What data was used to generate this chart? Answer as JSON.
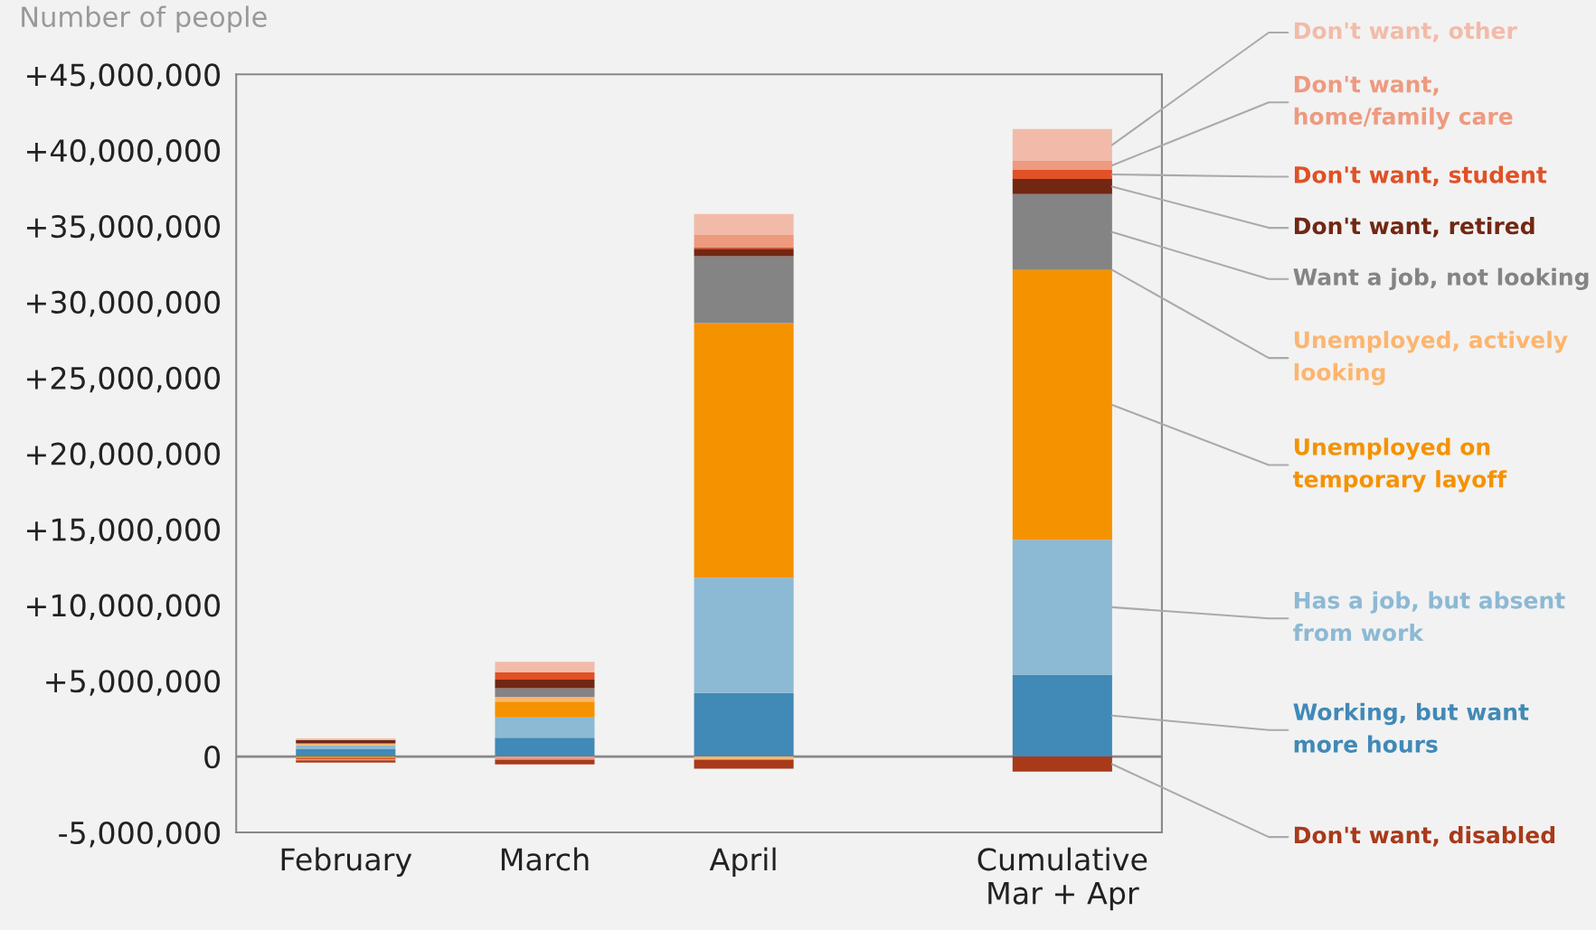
{
  "chart_data": {
    "type": "bar",
    "stacked": true,
    "ylabel": "Number of people",
    "categories": [
      "February",
      "March",
      "April",
      "Cumulative\nMar + Apr"
    ],
    "series": [
      {
        "name": "Working, but want\nmore hours",
        "color": "#4189b6",
        "values": [
          480000,
          1250000,
          4200000,
          5400000
        ]
      },
      {
        "name": "Has a job, but absent\nfrom work",
        "color": "#8cb9d4",
        "values": [
          260000,
          1330000,
          7600000,
          8900000
        ]
      },
      {
        "name": "Unemployed on\ntemporary layoff",
        "color": "#f59200",
        "values": [
          -100000,
          1050000,
          16800000,
          17800000
        ]
      },
      {
        "name": "Unemployed, actively\nlooking",
        "color": "#fdb56e",
        "values": [
          100000,
          300000,
          -200000,
          null
        ]
      },
      {
        "name": "Want a job, not looking",
        "color": "#848484",
        "values": [
          60000,
          580000,
          4400000,
          5000000
        ]
      },
      {
        "name": "Don't want, retired",
        "color": "#722713",
        "values": [
          200000,
          560000,
          500000,
          1000000
        ]
      },
      {
        "name": "Don't want, student",
        "color": "#e05125",
        "values": [
          -100000,
          480000,
          100000,
          600000
        ]
      },
      {
        "name": "Don't want,\nhome/family care",
        "color": "#ee9a7f",
        "values": [
          -50000,
          -200000,
          800000,
          600000
        ]
      },
      {
        "name": "Don't want, other",
        "color": "#f2bba9",
        "values": [
          100000,
          700000,
          1400000,
          2100000
        ]
      },
      {
        "name": "Don't want, disabled",
        "color": "#a83a1a",
        "values": [
          -150000,
          -320000,
          -600000,
          -1000000
        ]
      }
    ],
    "ylim": [
      -5000000,
      45000000
    ],
    "yticks": [
      {
        "value": -5000000,
        "label": "-5,000,000"
      },
      0,
      {
        "value": 5000000,
        "label": "+5,000,000"
      },
      {
        "value": 10000000,
        "label": "+10,000,000"
      },
      {
        "value": 15000000,
        "label": "+15,000,000"
      },
      {
        "value": 20000000,
        "label": "+20,000,000"
      },
      {
        "value": 25000000,
        "label": "+25,000,000"
      },
      {
        "value": 30000000,
        "label": "+30,000,000"
      },
      {
        "value": 35000000,
        "label": "+35,000,000"
      },
      {
        "value": 40000000,
        "label": "+40,000,000"
      },
      {
        "value": 45000000,
        "label": "+45,000,000"
      }
    ],
    "ref_lines": [
      {
        "axis": "y",
        "value": 0,
        "color": "#888888"
      }
    ],
    "grid": false,
    "legend": "right"
  }
}
